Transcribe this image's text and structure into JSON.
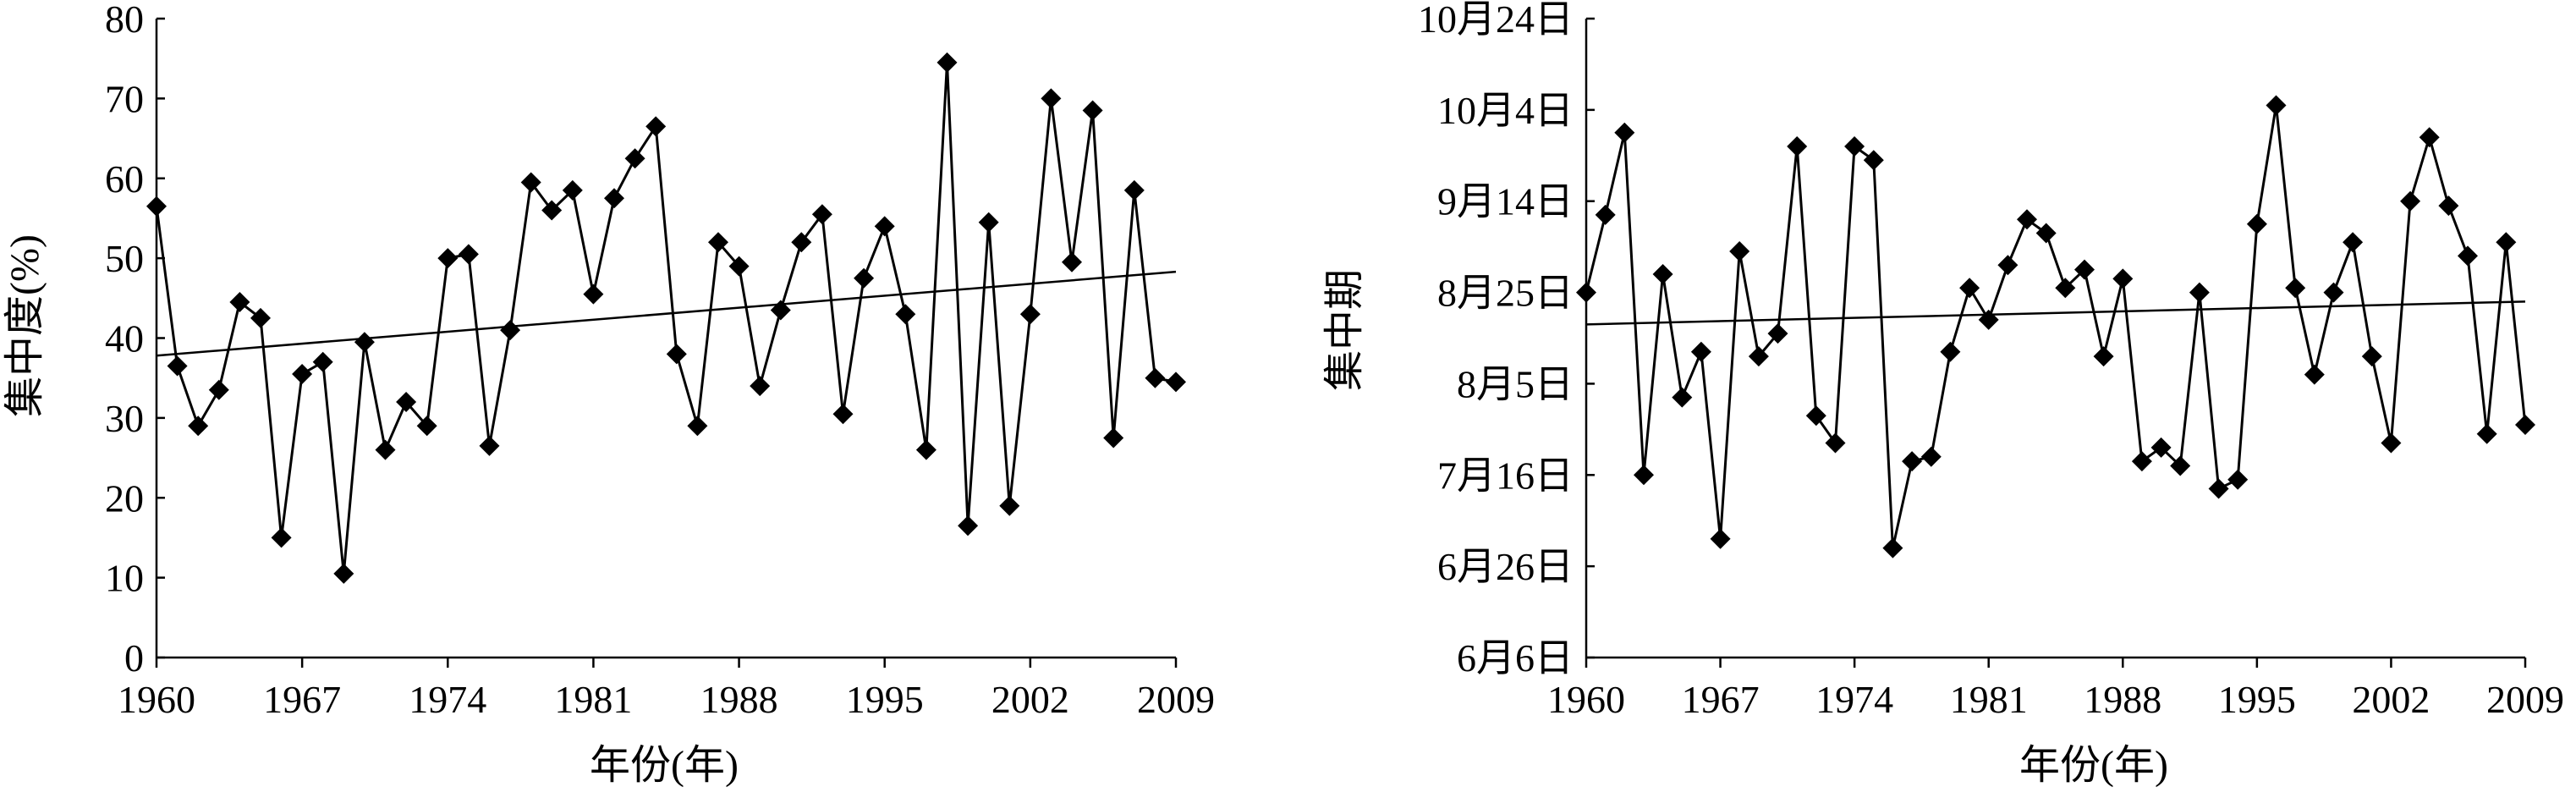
{
  "chart_data": [
    {
      "type": "line",
      "xlabel": "年份(年)",
      "ylabel": "集中度(%)",
      "xlim": [
        1960,
        2009
      ],
      "ylim": [
        0,
        80
      ],
      "x_ticks": [
        "1960",
        "1967",
        "1974",
        "1981",
        "1988",
        "1995",
        "2002",
        "2009"
      ],
      "y_ticks": [
        "0",
        "10",
        "20",
        "30",
        "40",
        "50",
        "60",
        "70",
        "80"
      ],
      "trendline": true,
      "trend_start": [
        1960,
        37.8
      ],
      "trend_end": [
        2009,
        48.3
      ],
      "series": [
        {
          "x": [
            1960,
            1961,
            1962,
            1963,
            1964,
            1965,
            1966,
            1967,
            1968,
            1969,
            1970,
            1971,
            1972,
            1973,
            1974,
            1975,
            1976,
            1977,
            1978,
            1979,
            1980,
            1981,
            1982,
            1983,
            1984,
            1985,
            1986,
            1987,
            1988,
            1989,
            1990,
            1991,
            1992,
            1993,
            1994,
            1995,
            1996,
            1997,
            1998,
            1999,
            2000,
            2001,
            2002,
            2003,
            2004,
            2005,
            2006,
            2007,
            2008,
            2009
          ],
          "values": [
            56.5,
            36.5,
            29,
            33.5,
            44.5,
            42.5,
            15,
            35.5,
            37,
            10.5,
            39.5,
            26,
            32,
            29,
            50,
            50.5,
            26.5,
            41,
            59.5,
            56,
            58.5,
            45.5,
            57.5,
            62.5,
            66.5,
            38,
            29,
            52,
            49,
            34,
            43.5,
            52,
            55.5,
            30.5,
            47.5,
            54,
            43,
            26,
            74.5,
            16.5,
            54.5,
            19,
            43,
            70,
            49.5,
            68.5,
            27.5,
            58.5,
            35,
            34.5
          ]
        }
      ]
    },
    {
      "type": "line",
      "xlabel": "年份(年)",
      "ylabel": "集中期",
      "xlim": [
        1960,
        2009
      ],
      "ylim": [
        "6月6日",
        "10月24日"
      ],
      "x_ticks": [
        "1960",
        "1967",
        "1974",
        "1981",
        "1988",
        "1995",
        "2002",
        "2009"
      ],
      "y_ticks": [
        "6月6日",
        "6月26日",
        "7月16日",
        "8月5日",
        "8月25日",
        "9月14日",
        "10月4日",
        "10月24日"
      ],
      "trendline": true,
      "trend_start": [
        "1960",
        "8月18日"
      ],
      "trend_end": [
        "2009",
        "8月23日"
      ],
      "series": [
        {
          "x": [
            1960,
            1961,
            1962,
            1963,
            1964,
            1965,
            1966,
            1967,
            1968,
            1969,
            1970,
            1971,
            1972,
            1973,
            1974,
            1975,
            1976,
            1977,
            1978,
            1979,
            1980,
            1981,
            1982,
            1983,
            1984,
            1985,
            1986,
            1987,
            1988,
            1989,
            1990,
            1991,
            1992,
            1993,
            1994,
            1995,
            1996,
            1997,
            1998,
            1999,
            2000,
            2001,
            2002,
            2003,
            2004,
            2005,
            2006,
            2007,
            2008,
            2009
          ],
          "values": [
            "8月25日",
            "9月11日",
            "9月29日",
            "7月16日",
            "8月29日",
            "8月2日",
            "8月12日",
            "7月2日",
            "9月3日",
            "8月11日",
            "8月16日",
            "9月26日",
            "7月29日",
            "7月23日",
            "9月26日",
            "9月23日",
            "6月30日",
            "7月19日",
            "7月20日",
            "8月12日",
            "8月26日",
            "8月19日",
            "8月31日",
            "9月10日",
            "9月7日",
            "8月26日",
            "8月30日",
            "8月11日",
            "8月28日",
            "7月19日",
            "7月22日",
            "7月18日",
            "8月25日",
            "7月13日",
            "7月15日",
            "9月9日",
            "10月5日",
            "8月26日",
            "8月7日",
            "8月25日",
            "9月5日",
            "8月11日",
            "7月23日",
            "9月14日",
            "9月28日",
            "9月13日",
            "9月2日",
            "7月25日",
            "9月5日",
            "7月27日"
          ]
        }
      ]
    }
  ]
}
